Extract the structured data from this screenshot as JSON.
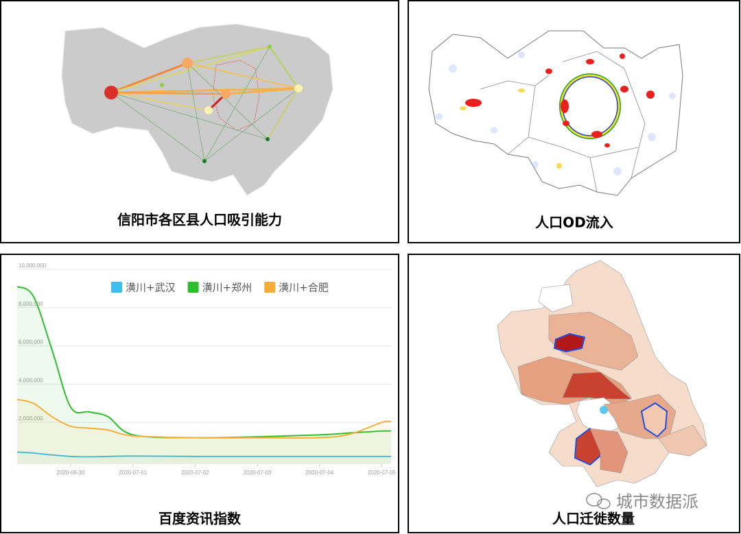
{
  "panels": [
    {
      "caption": "信阳市各区县人口吸引能力"
    },
    {
      "caption": "人口OD流入"
    },
    {
      "caption": "百度资讯指数"
    },
    {
      "caption": "人口迁徙数量"
    }
  ],
  "watermark": "城市数据派",
  "chart_data": {
    "type": "line",
    "x": [
      -0.86,
      -0.6,
      -0.3,
      0,
      0.3,
      0.6,
      1,
      2,
      3,
      4,
      4.5,
      5,
      5.15
    ],
    "xlim": [
      -0.86,
      5.15
    ],
    "xticks": [
      {
        "value": 0,
        "label": "2020-06-30"
      },
      {
        "value": 1,
        "label": "2020-07-01"
      },
      {
        "value": 2,
        "label": "2020-07-02"
      },
      {
        "value": 3,
        "label": "2020-07-03"
      },
      {
        "value": 4,
        "label": "2020-07-04"
      },
      {
        "value": 5,
        "label": "2020-07-05"
      }
    ],
    "ylim": [
      0,
      10000000
    ],
    "yticks": [
      {
        "value": 2000000,
        "label": "2,000,000"
      },
      {
        "value": 4000000,
        "label": "4,000,000"
      },
      {
        "value": 6000000,
        "label": "6,000,000"
      },
      {
        "value": 8000000,
        "label": "8,000,000"
      },
      {
        "value": 10000000,
        "label": "10,000,000"
      }
    ],
    "grid": true,
    "series": [
      {
        "name": "潢川+武汉",
        "color": "#3cbff0",
        "values": [
          450000,
          400000,
          300000,
          220000,
          200000,
          220000,
          240000,
          220000,
          220000,
          220000,
          220000,
          220000,
          220000
        ]
      },
      {
        "name": "潢川+郑州",
        "color": "#2ebd2e",
        "values": [
          9100000,
          8600000,
          5800000,
          2800000,
          2550000,
          2300000,
          1350000,
          1200000,
          1250000,
          1350000,
          1450000,
          1550000,
          1550000
        ]
      },
      {
        "name": "潢川+合肥",
        "color": "#f7ae39",
        "values": [
          3200000,
          3000000,
          2300000,
          1800000,
          1700000,
          1600000,
          1300000,
          1200000,
          1200000,
          1200000,
          1400000,
          2000000,
          2050000
        ]
      }
    ]
  }
}
